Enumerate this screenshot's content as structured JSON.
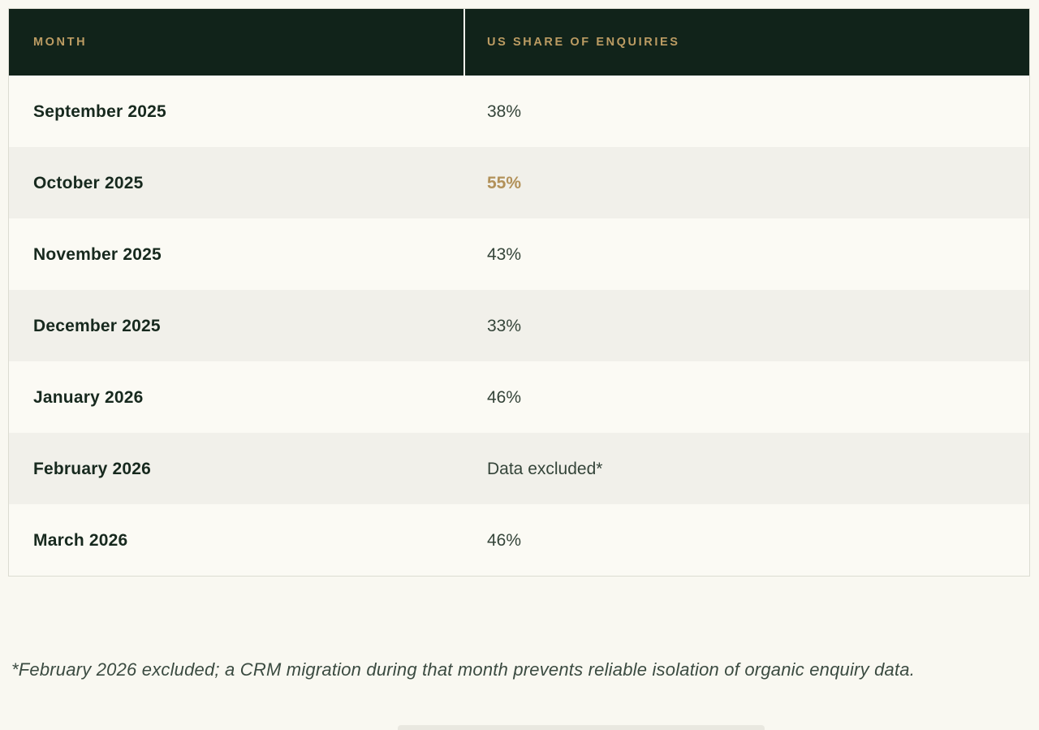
{
  "table": {
    "columns": [
      {
        "label": "MONTH"
      },
      {
        "label": "US SHARE OF ENQUIRIES"
      }
    ],
    "rows": [
      {
        "month": "September 2025",
        "value": "38%",
        "highlight": false
      },
      {
        "month": "October 2025",
        "value": "55%",
        "highlight": true
      },
      {
        "month": "November 2025",
        "value": "43%",
        "highlight": false
      },
      {
        "month": "December 2025",
        "value": "33%",
        "highlight": false
      },
      {
        "month": "January 2026",
        "value": "46%",
        "highlight": false
      },
      {
        "month": "February 2026",
        "value": "Data excluded*",
        "highlight": false
      },
      {
        "month": "March 2026",
        "value": "46%",
        "highlight": false
      }
    ]
  },
  "footnote": "*February 2026 excluded; a CRM migration during that month prevents reliable isolation of organic enquiry data.",
  "colors": {
    "header_background": "#11231a",
    "header_text_gold": "#bc9c63",
    "highlight_gold": "#b29159",
    "row_light": "#fbfaf4",
    "row_alt": "#f1f0ea",
    "body_text": "#17291e",
    "page_background": "#f9f8f1",
    "table_border": "#dcdcd2"
  }
}
